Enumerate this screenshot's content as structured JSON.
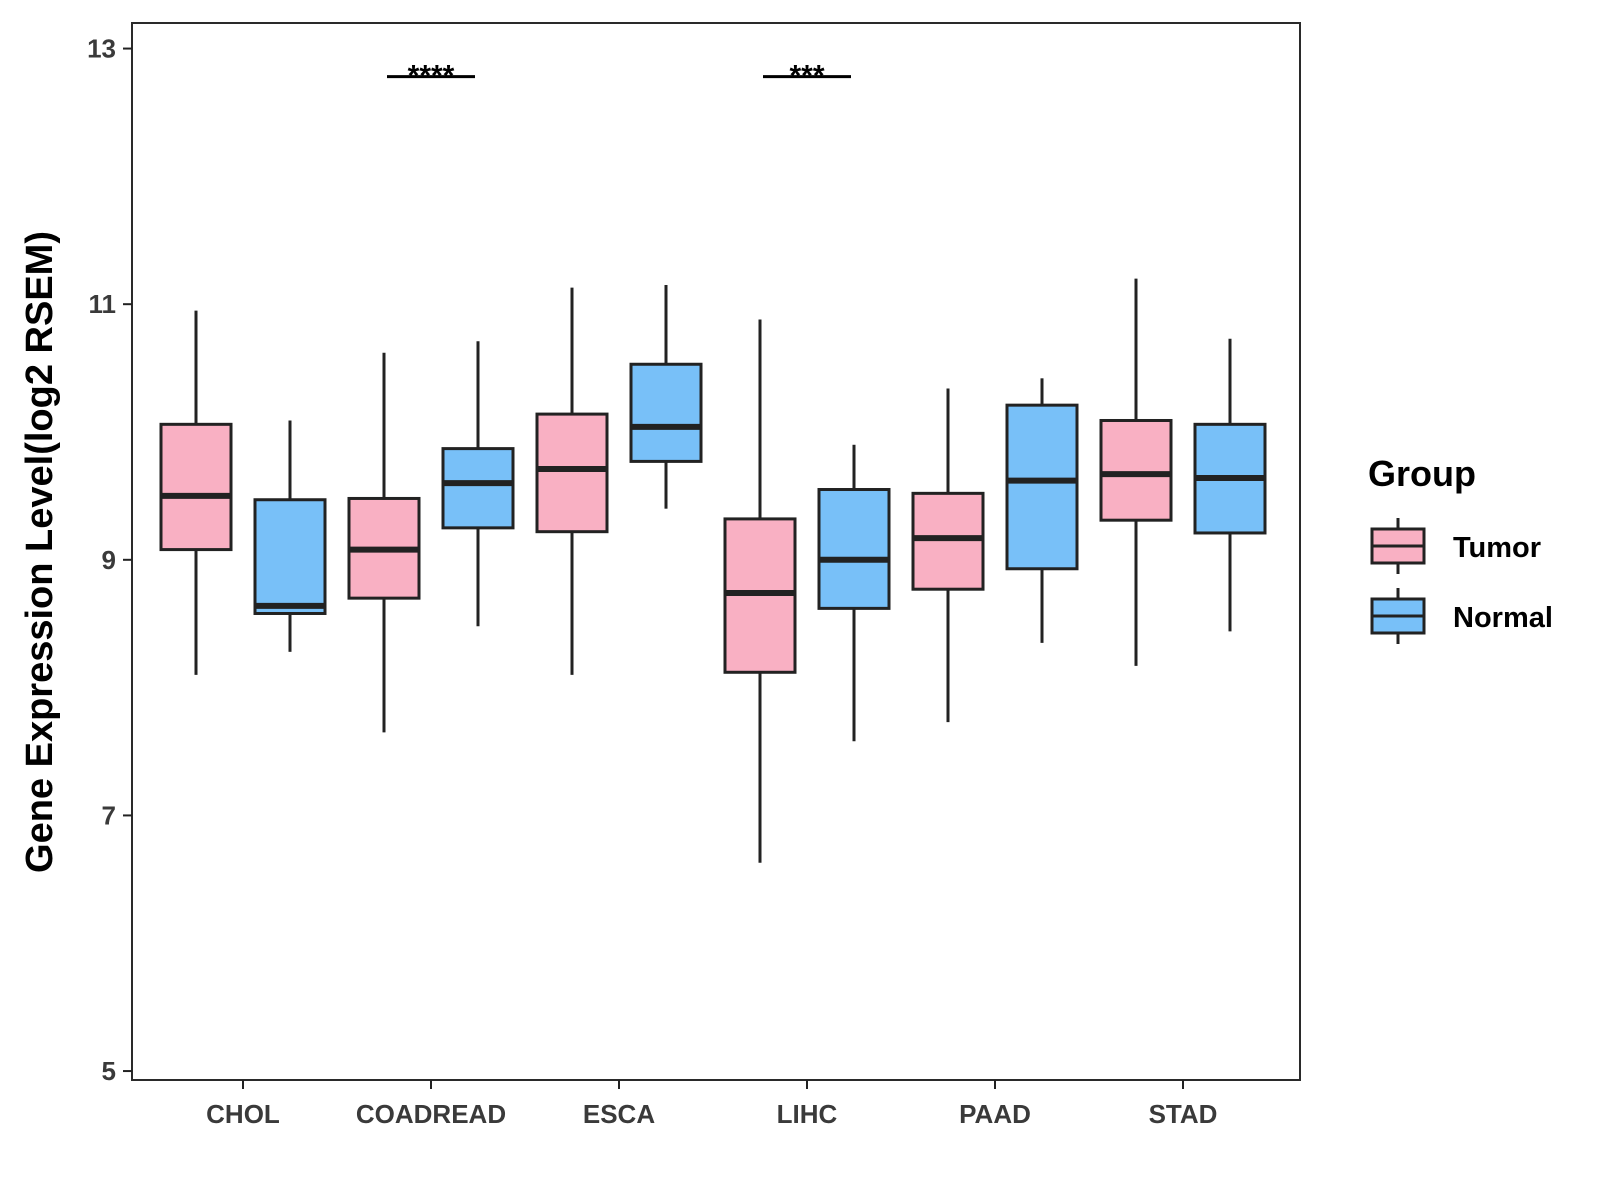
{
  "chart_data": {
    "type": "boxplot",
    "title": "",
    "xlabel": "",
    "ylabel": "Gene Expression Level(log2 RSEM)",
    "ylim": [
      4.93,
      13.2
    ],
    "yticks": [
      5,
      7,
      9,
      11,
      13
    ],
    "categories": [
      "CHOL",
      "COADREAD",
      "ESCA",
      "LIHC",
      "PAAD",
      "STAD"
    ],
    "grid": false,
    "legend": {
      "title": "Group",
      "position": "right"
    },
    "series": [
      {
        "name": "Tumor",
        "color": "#F9B0C3",
        "boxes": [
          {
            "min": 8.1,
            "q1": 9.08,
            "median": 9.5,
            "q3": 10.06,
            "max": 10.95
          },
          {
            "min": 7.65,
            "q1": 8.7,
            "median": 9.08,
            "q3": 9.48,
            "max": 10.62
          },
          {
            "min": 8.1,
            "q1": 9.22,
            "median": 9.71,
            "q3": 10.14,
            "max": 11.13
          },
          {
            "min": 6.63,
            "q1": 8.12,
            "median": 8.74,
            "q3": 9.32,
            "max": 10.88
          },
          {
            "min": 7.73,
            "q1": 8.77,
            "median": 9.17,
            "q3": 9.52,
            "max": 10.34
          },
          {
            "min": 8.17,
            "q1": 9.31,
            "median": 9.67,
            "q3": 10.09,
            "max": 11.2
          }
        ]
      },
      {
        "name": "Normal",
        "color": "#78C0F8",
        "boxes": [
          {
            "min": 8.28,
            "q1": 8.58,
            "median": 8.64,
            "q3": 9.47,
            "max": 10.09
          },
          {
            "min": 8.48,
            "q1": 9.25,
            "median": 9.6,
            "q3": 9.87,
            "max": 10.71
          },
          {
            "min": 9.4,
            "q1": 9.77,
            "median": 10.04,
            "q3": 10.53,
            "max": 11.15
          },
          {
            "min": 7.58,
            "q1": 8.62,
            "median": 9.0,
            "q3": 9.55,
            "max": 9.9
          },
          {
            "min": 8.35,
            "q1": 8.93,
            "median": 9.62,
            "q3": 10.21,
            "max": 10.42
          },
          {
            "min": 8.44,
            "q1": 9.21,
            "median": 9.64,
            "q3": 10.06,
            "max": 10.73
          }
        ]
      }
    ],
    "annotations": [
      {
        "category": "COADREAD",
        "label": "****",
        "y": 12.78
      },
      {
        "category": "LIHC",
        "label": "***",
        "y": 12.78
      }
    ]
  }
}
